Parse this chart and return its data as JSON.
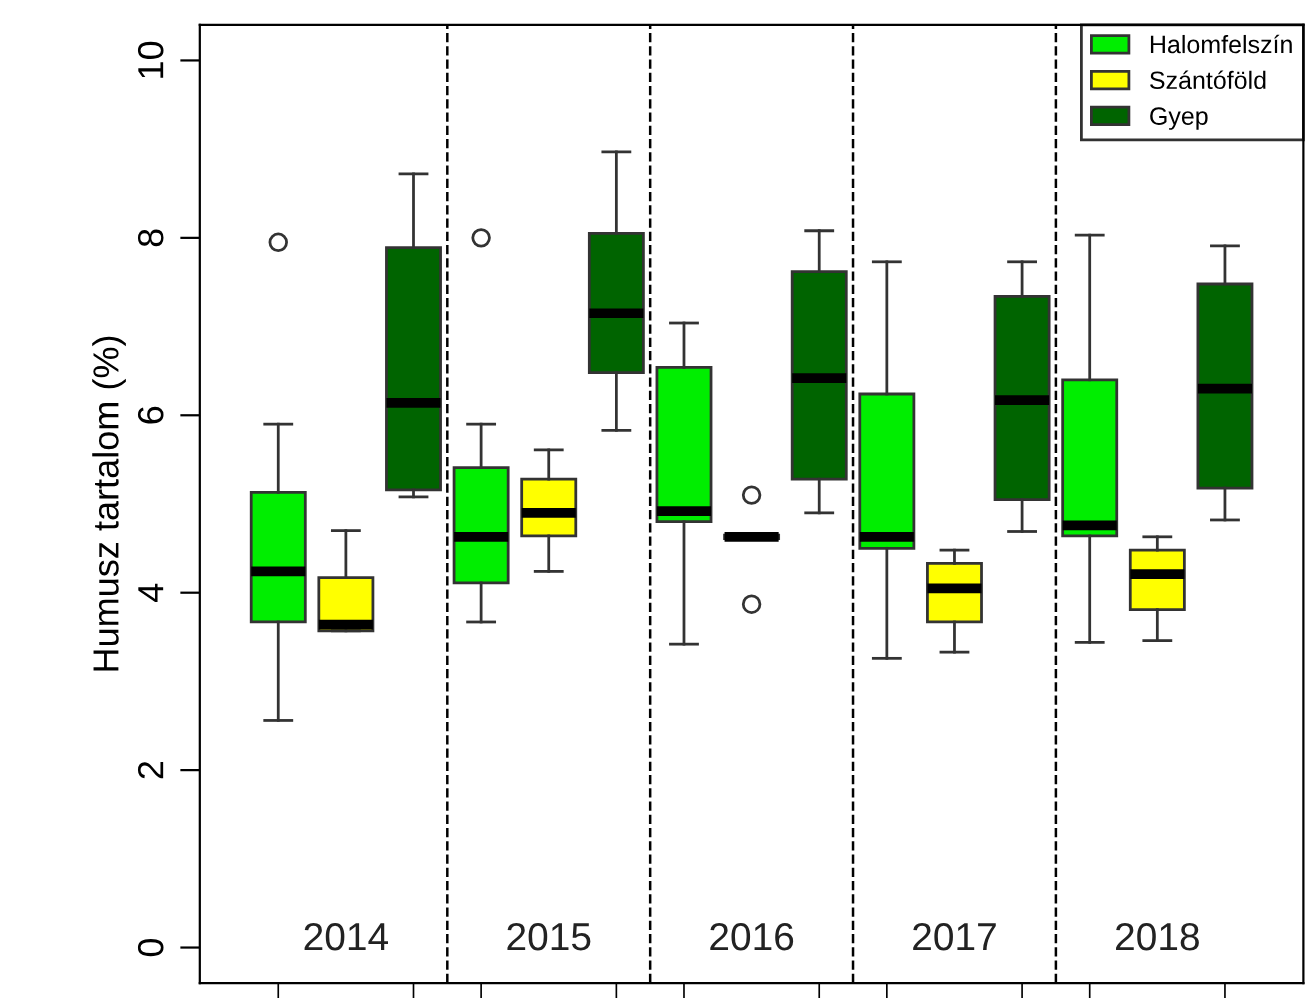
{
  "chart_data": {
    "type": "box",
    "ylabel": "Humusz tartalom (%)",
    "categories": [
      "2014",
      "2015",
      "2016",
      "2017",
      "2018"
    ],
    "ylim": [
      -0.4,
      10.4
    ],
    "yticks": [
      0,
      2,
      4,
      6,
      8,
      10
    ],
    "legend": "top right",
    "series": [
      {
        "name": "Halomfelszín",
        "color": "#00ee00",
        "boxes": [
          {
            "low": 2.56,
            "q1": 3.67,
            "median": 4.24,
            "q3": 5.13,
            "high": 5.9,
            "outliers": [
              7.95
            ]
          },
          {
            "low": 3.67,
            "q1": 4.11,
            "median": 4.63,
            "q3": 5.41,
            "high": 5.9,
            "outliers": [
              8.0
            ]
          },
          {
            "low": 3.42,
            "q1": 4.8,
            "median": 4.92,
            "q3": 6.54,
            "high": 7.04
          },
          {
            "low": 3.26,
            "q1": 4.5,
            "median": 4.63,
            "q3": 6.24,
            "high": 7.73
          },
          {
            "low": 3.44,
            "q1": 4.64,
            "median": 4.76,
            "q3": 6.4,
            "high": 8.03
          }
        ]
      },
      {
        "name": "Szántóföld",
        "color": "#ffff00",
        "boxes": [
          {
            "low": 3.57,
            "q1": 3.57,
            "median": 3.64,
            "q3": 4.17,
            "high": 4.7
          },
          {
            "low": 4.24,
            "q1": 4.64,
            "median": 4.9,
            "q3": 5.28,
            "high": 5.61
          },
          {
            "low": 4.61,
            "q1": 4.61,
            "median": 4.63,
            "q3": 4.65,
            "high": 4.65,
            "outliers": [
              5.1,
              3.87
            ]
          },
          {
            "low": 3.33,
            "q1": 3.67,
            "median": 4.05,
            "q3": 4.33,
            "high": 4.48
          },
          {
            "low": 3.46,
            "q1": 3.81,
            "median": 4.21,
            "q3": 4.48,
            "high": 4.63
          }
        ]
      },
      {
        "name": "Gyep",
        "color": "#006400",
        "boxes": [
          {
            "low": 5.08,
            "q1": 5.16,
            "median": 6.14,
            "q3": 7.89,
            "high": 8.72
          },
          {
            "low": 5.83,
            "q1": 6.48,
            "median": 7.15,
            "q3": 8.05,
            "high": 8.97
          },
          {
            "low": 4.9,
            "q1": 5.28,
            "median": 6.42,
            "q3": 7.62,
            "high": 8.08
          },
          {
            "low": 4.69,
            "q1": 5.05,
            "median": 6.17,
            "q3": 7.34,
            "high": 7.73
          },
          {
            "low": 4.82,
            "q1": 5.18,
            "median": 6.3,
            "q3": 7.48,
            "high": 7.91
          }
        ]
      }
    ]
  }
}
